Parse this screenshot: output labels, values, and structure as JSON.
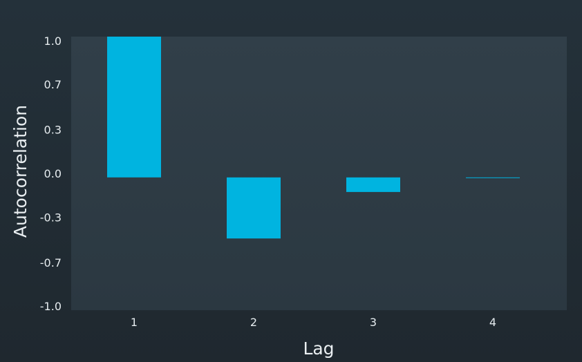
{
  "chart_data": {
    "type": "bar",
    "categories": [
      "1",
      "2",
      "3",
      "4"
    ],
    "values": [
      1.03,
      -0.49,
      -0.14,
      -0.03
    ],
    "xlabel": "Lag",
    "ylabel": "Autocorrelation",
    "ylim": [
      -1.03,
      1.03
    ],
    "yticks": [
      {
        "value": 1.0,
        "label": "1.0"
      },
      {
        "value": 0.67,
        "label": "0.7"
      },
      {
        "value": 0.33,
        "label": "0.3"
      },
      {
        "value": 0.0,
        "label": "0.0"
      },
      {
        "value": -0.33,
        "label": "-0.3"
      },
      {
        "value": -0.67,
        "label": "-0.7"
      },
      {
        "value": -1.0,
        "label": "-1.0"
      }
    ],
    "bar_baseline": -0.03,
    "grid": false,
    "colors": {
      "bar": "#00b4e0",
      "plot_background": "#2f3d47",
      "page_background": "#222c33",
      "text": "#e6ecef"
    }
  }
}
